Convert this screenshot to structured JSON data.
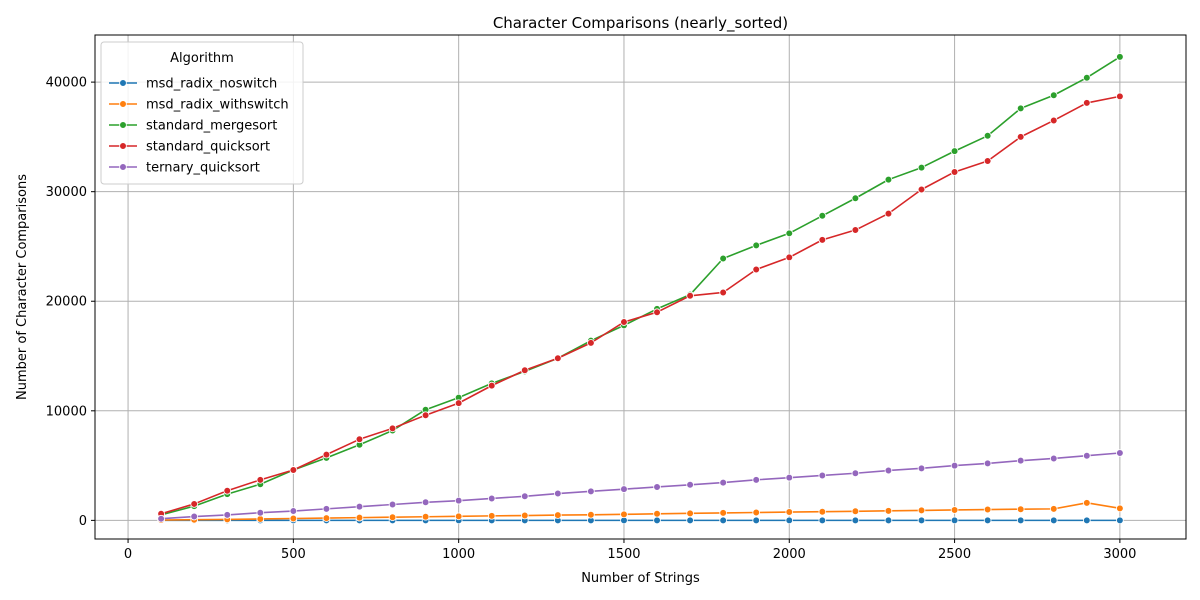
{
  "chart_data": {
    "type": "line",
    "title": "Character Comparisons (nearly_sorted)",
    "xlabel": "Number of Strings",
    "ylabel": "Number of Character Comparisons",
    "xlim": [
      -100,
      3200
    ],
    "ylim": [
      -1700,
      44300
    ],
    "xticks": [
      0,
      500,
      1000,
      1500,
      2000,
      2500,
      3000
    ],
    "yticks": [
      0,
      10000,
      20000,
      30000,
      40000
    ],
    "grid": true,
    "legend": {
      "title": "Algorithm",
      "position": "top-left"
    },
    "x": [
      100,
      200,
      300,
      400,
      500,
      600,
      700,
      800,
      900,
      1000,
      1100,
      1200,
      1300,
      1400,
      1500,
      1600,
      1700,
      1800,
      1900,
      2000,
      2100,
      2200,
      2300,
      2400,
      2500,
      2600,
      2700,
      2800,
      2900,
      3000
    ],
    "series": [
      {
        "name": "msd_radix_noswitch",
        "color": "#1f77b4",
        "values": [
          0,
          0,
          0,
          0,
          0,
          0,
          0,
          0,
          0,
          0,
          0,
          0,
          0,
          0,
          0,
          0,
          0,
          0,
          0,
          0,
          0,
          0,
          0,
          0,
          0,
          0,
          0,
          0,
          0,
          0
        ]
      },
      {
        "name": "msd_radix_withswitch",
        "color": "#ff7f0e",
        "values": [
          30,
          60,
          90,
          130,
          170,
          210,
          250,
          290,
          330,
          370,
          410,
          440,
          480,
          510,
          550,
          600,
          640,
          680,
          720,
          760,
          790,
          830,
          870,
          910,
          950,
          990,
          1020,
          1050,
          1600,
          1100
        ]
      },
      {
        "name": "standard_mergesort",
        "color": "#2ca02c",
        "values": [
          500,
          1300,
          2400,
          3300,
          4600,
          5700,
          6900,
          8200,
          10100,
          11200,
          12500,
          13600,
          14800,
          16400,
          17800,
          19300,
          20600,
          23900,
          25100,
          26200,
          27800,
          29400,
          31100,
          32200,
          33700,
          35100,
          37600,
          38800,
          40400,
          42300
        ]
      },
      {
        "name": "standard_quicksort",
        "color": "#d62728",
        "values": [
          600,
          1500,
          2700,
          3700,
          4600,
          6000,
          7400,
          8400,
          9600,
          10700,
          12300,
          13700,
          14800,
          16200,
          18100,
          19000,
          20500,
          20800,
          22900,
          24000,
          25600,
          26500,
          28000,
          30200,
          31800,
          32800,
          35000,
          36500,
          38100,
          38700
        ]
      },
      {
        "name": "ternary_quicksort",
        "color": "#9467bd",
        "values": [
          150,
          350,
          500,
          700,
          850,
          1050,
          1250,
          1450,
          1650,
          1800,
          2000,
          2200,
          2450,
          2650,
          2850,
          3050,
          3250,
          3450,
          3700,
          3900,
          4100,
          4300,
          4550,
          4750,
          5000,
          5200,
          5450,
          5650,
          5900,
          6150
        ]
      }
    ]
  }
}
